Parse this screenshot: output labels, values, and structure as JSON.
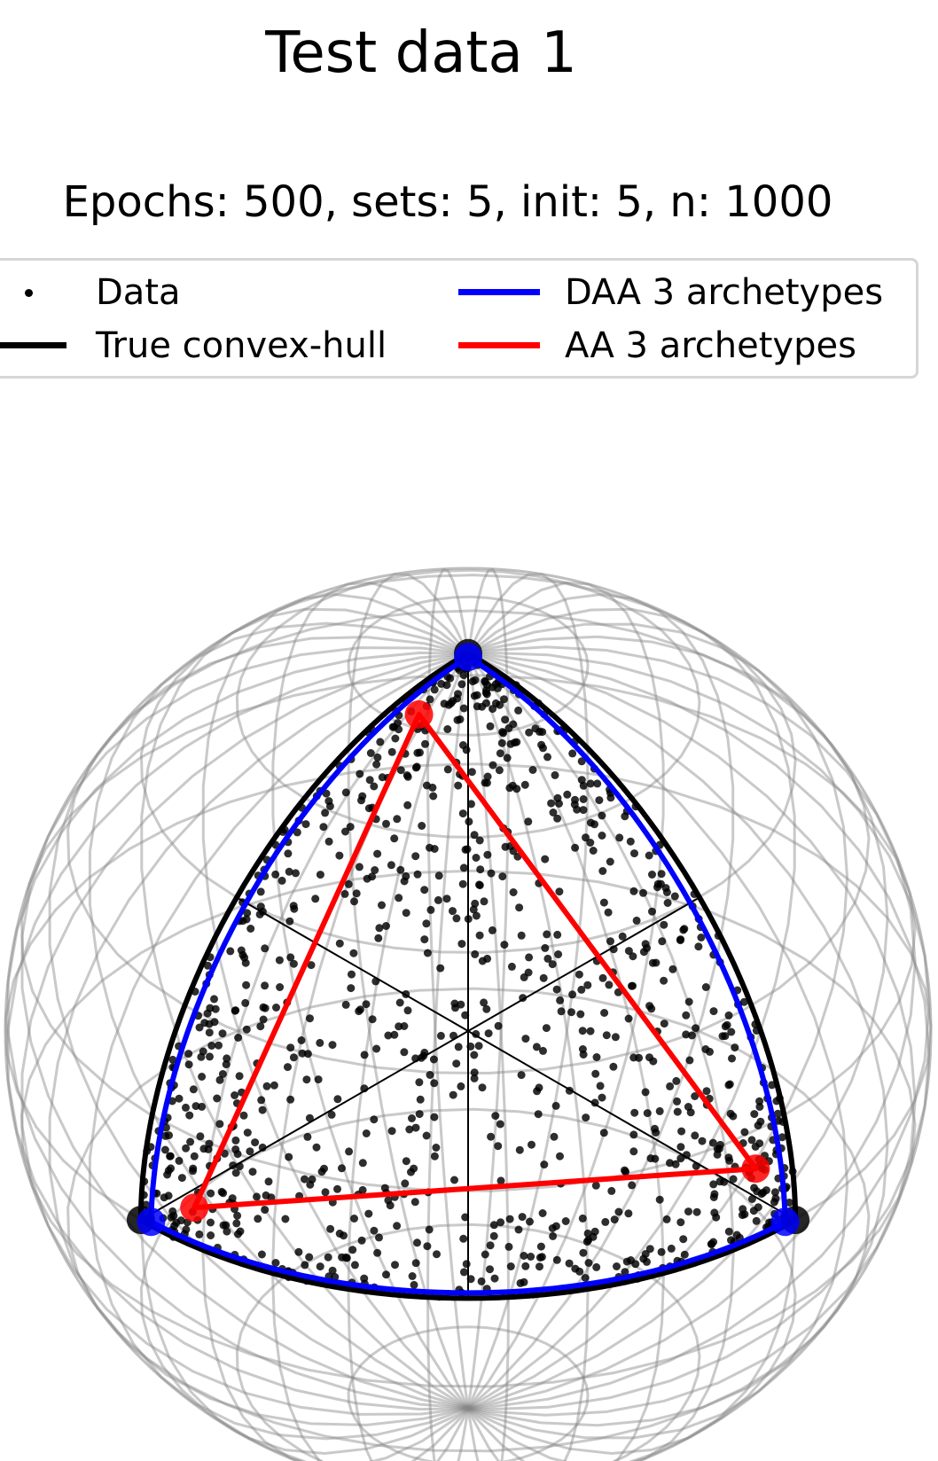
{
  "chart_data": {
    "type": "scatter",
    "title": "Test data 1",
    "subtitle": "Epochs: 500, sets: 5, init: 5, n: 1000",
    "legend": {
      "placement": "top",
      "entries": [
        {
          "label": "Data",
          "marker": "dot",
          "color": "#000000"
        },
        {
          "label": "True convex-hull",
          "marker": "line",
          "color": "#000000"
        },
        {
          "label": "DAA 3 archetypes",
          "marker": "line",
          "color": "#0000ff"
        },
        {
          "label": "AA 3 archetypes",
          "marker": "line",
          "color": "#ff0000"
        }
      ]
    },
    "projection": "3d-unit-sphere",
    "grid": true,
    "series": [
      {
        "name": "Data",
        "kind": "scatter",
        "n": 1000,
        "color": "#000000"
      },
      {
        "name": "True convex-hull",
        "kind": "spherical-triangle",
        "color": "#000000",
        "vertices": [
          [
            0,
            0,
            1
          ],
          [
            1,
            0,
            0
          ],
          [
            0,
            1,
            0
          ]
        ]
      },
      {
        "name": "DAA 3 archetypes",
        "kind": "spherical-triangle",
        "color": "#0000ff",
        "vertices": [
          [
            0.01,
            0.01,
            0.99
          ],
          [
            0.98,
            0.03,
            0.01
          ],
          [
            0.03,
            0.98,
            0.01
          ]
        ]
      },
      {
        "name": "AA 3 archetypes",
        "kind": "triangle",
        "color": "#ff0000",
        "vertices": [
          [
            0.17,
            0.05,
            0.78
          ],
          [
            0.8,
            0.12,
            0.08
          ],
          [
            0.08,
            0.78,
            0.14
          ]
        ]
      }
    ]
  }
}
